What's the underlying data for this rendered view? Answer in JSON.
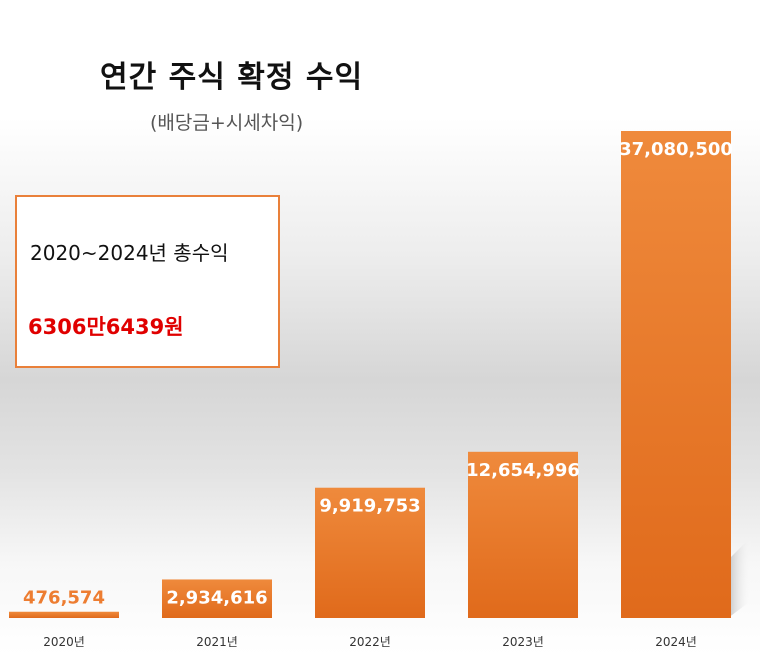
{
  "chart_data": {
    "type": "bar",
    "title": "연간 주식 확정 수익",
    "subtitle": "(배당금+시세차익)",
    "categories": [
      "2020년",
      "2021년",
      "2022년",
      "2023년",
      "2024년"
    ],
    "values": [
      476574,
      2934616,
      9919753,
      12654996,
      37080500
    ],
    "data_labels": [
      "476,574",
      "2,934,616",
      "9,919,753",
      "12,654,996",
      "37,080,500"
    ],
    "ylim": [
      0,
      37080500
    ],
    "grid": false,
    "legend": "none",
    "bar_color": "#ed7d31"
  },
  "summary": {
    "label": "2020~2024년 총수익",
    "value": "6306만6439원",
    "border_color": "#e9803a",
    "value_color": "#e00000"
  }
}
